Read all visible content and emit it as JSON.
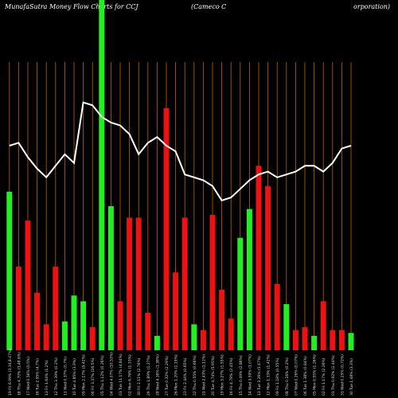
{
  "title": {
    "left": "MunafaSutra  Money Flow  Charts for CCJ",
    "middle": "(Cameco  C",
    "right": "orporation)"
  },
  "chart_data": {
    "type": "bar",
    "colors": {
      "up": "#22ee22",
      "down": "#ee1111",
      "line": "#ffffff",
      "grid": "#c06000"
    },
    "ylim": [
      0,
      100
    ],
    "categories": [
      "19 Fri 6.99% (3,34,8.47%)",
      "18 Thu 4.70% (3,48.6%)",
      "17 Wed 0.56% (0.5%)",
      "16 Tue 2.95% (4.7%)",
      "13 Fri 1.64% (1.2%)",
      "12 Thu 3.39% (0.2%)",
      "11 Wed 0.37% (0.7%)",
      "10 Tue 4.85% (3.9%)",
      "09 Mon 2.17% (5.42%)",
      "06 Fri 3.37% (16.5%)",
      "05 Thu 1.12% (0.26%)",
      "04 Wed 4.07% (10.53%)",
      "03 Tue 11.17% (4.84%)",
      "02 Mon 6.76% (1.33%)",
      "30 Fri 2.11% (2.76%)",
      "29 Thu 1.89% (1.27%)",
      "28 Wed 4.16% (1.38%)",
      "27 Tue 0.32% (2.29%)",
      "26 Mon 1.20% (1.19%)",
      "23 Fri 2.44% (0.65%)",
      "22 Thu 0.55% (0.66%)",
      "21 Wed 2.43% (2.12%)",
      "20 Tue 4.74% (5.95%)",
      "19 Mon 3.27% (1.55%)",
      "16 Fri 4.78% (2.45%)",
      "15 Thu 0.49% (2.86%)",
      "14 Wed 3.59% (1.07%)",
      "13 Tue 3.26% (5.47%)",
      "12 Mon 1.33% (1.42%)",
      "09 Fri 1.18% (0.55%)",
      "08 Thu 0.16% (0.2%)",
      "07 Wed 0.26% (0.07%)",
      "06 Tue 1.38% (0.84%)",
      "05 Mon 0.55% (1.26%)",
      "02 Fri 1.17% (2.26%)",
      "01 Thu 0.92% (1.44%)",
      "31 Wed 0.25% (0.72%)",
      "30 Tue 1.48% (3.3%)"
    ],
    "bar_colors": [
      "up",
      "down",
      "down",
      "down",
      "down",
      "down",
      "up",
      "up",
      "up",
      "down",
      "up",
      "up",
      "down",
      "down",
      "down",
      "down",
      "up",
      "down",
      "down",
      "down",
      "up",
      "down",
      "down",
      "down",
      "down",
      "up",
      "up",
      "down",
      "down",
      "down",
      "up",
      "down",
      "down",
      "up",
      "down",
      "down",
      "down",
      "up"
    ],
    "values": [
      55,
      29,
      45,
      20,
      9,
      29,
      10,
      19,
      17,
      8,
      100,
      50,
      17,
      46,
      46,
      13,
      5,
      84,
      27,
      46,
      9,
      7,
      47,
      21,
      11,
      39,
      49,
      64,
      57,
      23,
      16,
      7,
      8,
      5,
      17,
      7,
      7,
      6
    ],
    "price_line": [
      71,
      72,
      67,
      63,
      60,
      64,
      68,
      65,
      86,
      85,
      81,
      79,
      78,
      75,
      68,
      72,
      74,
      71,
      69,
      61,
      60,
      59,
      57,
      52,
      53,
      56,
      59,
      61,
      62,
      60,
      61,
      62,
      64,
      64,
      62,
      65,
      70,
      71
    ]
  }
}
